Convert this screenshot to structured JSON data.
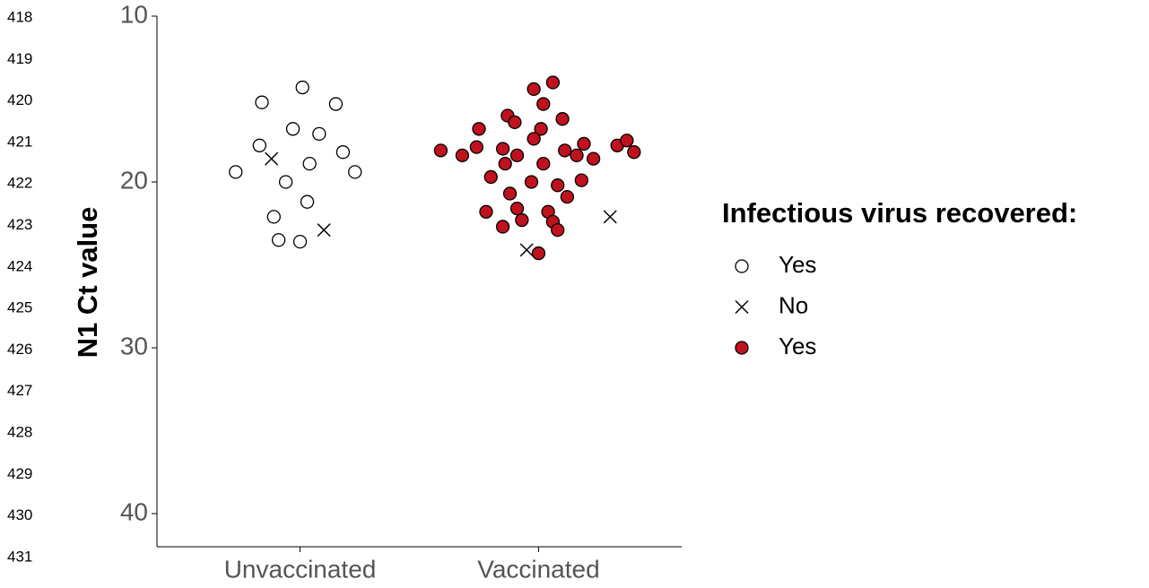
{
  "line_numbers": [
    418,
    419,
    420,
    421,
    422,
    423,
    424,
    425,
    426,
    427,
    428,
    429,
    430,
    431
  ],
  "chart_data": {
    "type": "scatter",
    "y_label": "N1 Ct value",
    "legend_title": "Infectious virus recovered:",
    "legend_position": "right",
    "xlim": [
      0.4,
      2.6
    ],
    "xticks": [
      {
        "value": 1,
        "label": "Unvaccinated"
      },
      {
        "value": 2,
        "label": "Vaccinated"
      }
    ],
    "ylim": [
      10,
      42
    ],
    "y_reversed": true,
    "yticks": [
      10,
      20,
      30,
      40
    ],
    "series": [
      {
        "name": "Yes",
        "marker": "circle",
        "color": "#ffffff",
        "edge_color": "#000000",
        "x": [
          1.01,
          0.84,
          1.15,
          0.97,
          1.08,
          0.83,
          1.18,
          1.04,
          0.73,
          1.23,
          0.94,
          1.03,
          0.89,
          0.91,
          1.0
        ],
        "values": [
          14.3,
          15.2,
          15.3,
          16.8,
          17.1,
          17.8,
          18.2,
          18.9,
          19.4,
          19.4,
          20.0,
          21.2,
          22.1,
          23.5,
          23.6
        ]
      },
      {
        "name": "No",
        "marker": "cross",
        "color": "#000000",
        "x": [
          0.88,
          1.1,
          1.95,
          2.3
        ],
        "values": [
          18.6,
          22.9,
          24.1,
          22.1
        ]
      },
      {
        "name": "Yes",
        "marker": "circle",
        "color": "#c0111f",
        "edge_color": "#000000",
        "x": [
          2.06,
          1.98,
          2.02,
          1.87,
          2.1,
          1.9,
          1.75,
          2.01,
          1.98,
          2.19,
          1.74,
          1.59,
          1.85,
          1.91,
          1.68,
          2.11,
          2.16,
          2.23,
          2.33,
          2.37,
          2.4,
          2.02,
          1.86,
          1.8,
          1.97,
          2.08,
          2.18,
          1.88,
          2.12,
          1.91,
          2.04,
          1.78,
          1.93,
          2.06,
          1.85,
          2.08,
          2.0
        ],
        "values": [
          14.0,
          14.4,
          15.3,
          16.0,
          16.2,
          16.4,
          16.8,
          16.8,
          17.4,
          17.7,
          17.9,
          18.1,
          18.0,
          18.4,
          18.4,
          18.1,
          18.4,
          18.6,
          17.8,
          17.5,
          18.2,
          18.9,
          18.9,
          19.7,
          20.0,
          20.2,
          19.9,
          20.7,
          20.9,
          21.6,
          21.8,
          21.8,
          22.3,
          22.4,
          22.7,
          22.9,
          24.3
        ]
      }
    ]
  }
}
